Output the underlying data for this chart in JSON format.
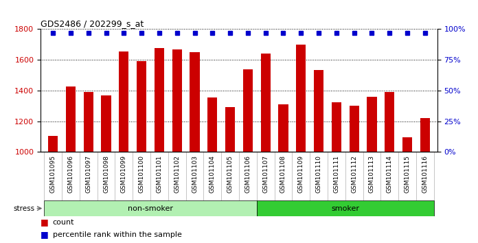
{
  "title": "GDS2486 / 202299_s_at",
  "samples": [
    "GSM101095",
    "GSM101096",
    "GSM101097",
    "GSM101098",
    "GSM101099",
    "GSM101100",
    "GSM101101",
    "GSM101102",
    "GSM101103",
    "GSM101104",
    "GSM101105",
    "GSM101106",
    "GSM101107",
    "GSM101108",
    "GSM101109",
    "GSM101110",
    "GSM101111",
    "GSM101112",
    "GSM101113",
    "GSM101114",
    "GSM101115",
    "GSM101116"
  ],
  "counts": [
    1105,
    1425,
    1390,
    1370,
    1655,
    1590,
    1675,
    1670,
    1650,
    1355,
    1290,
    1540,
    1640,
    1310,
    1700,
    1535,
    1325,
    1300,
    1360,
    1390,
    1095,
    1220
  ],
  "non_smoker_count": 12,
  "smoker_count": 10,
  "ylim_left": [
    1000,
    1800
  ],
  "ylim_right": [
    0,
    100
  ],
  "yticks_left": [
    1000,
    1200,
    1400,
    1600,
    1800
  ],
  "yticks_right": [
    0,
    25,
    50,
    75,
    100
  ],
  "bar_color": "#cc0000",
  "square_color": "#0000cc",
  "non_smoker_color": "#b2f0b2",
  "smoker_color": "#33cc33",
  "tick_area_color": "#c8c8c8",
  "plot_bg_color": "#ffffff",
  "grid_color": "#000000",
  "legend_count_color": "#cc0000",
  "legend_pct_color": "#0000cc"
}
